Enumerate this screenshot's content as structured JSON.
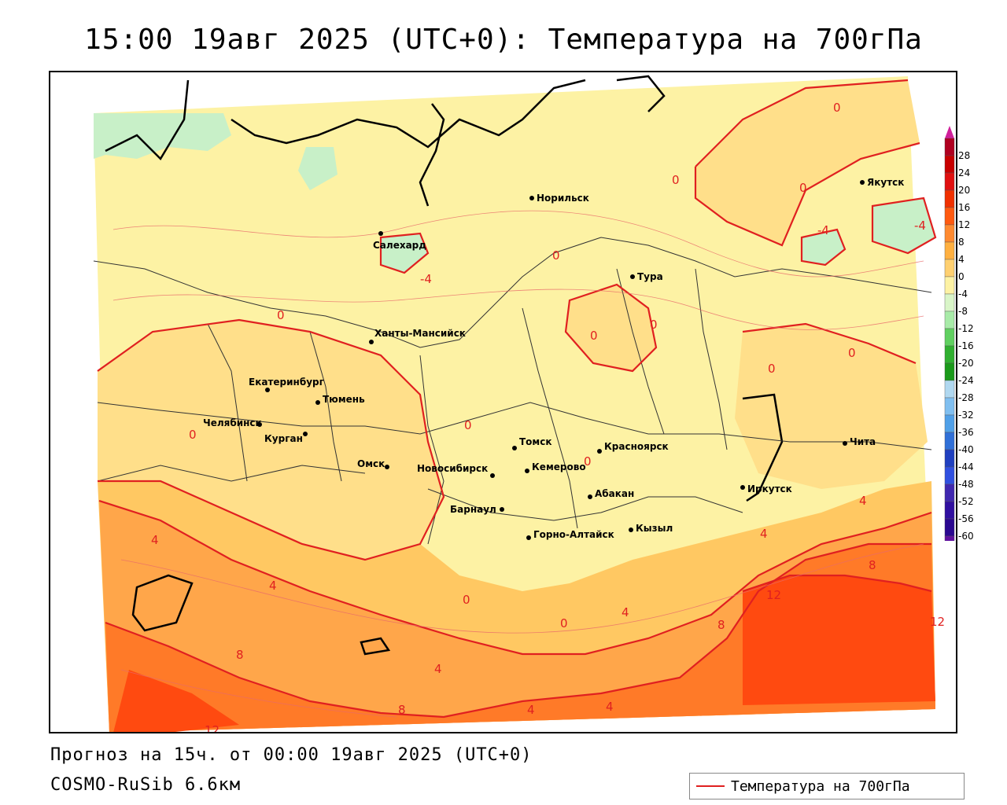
{
  "title": "15:00 19авг 2025 (UTC+0): Температура на 700гПа",
  "footer": {
    "forecast": "Прогноз на 15ч. от 00:00 19авг 2025 (UTC+0)",
    "model": "COSMO-RuSib 6.6км"
  },
  "line_legend": {
    "label": "Температура на 700гПа",
    "color": "#e02020"
  },
  "colorbar": {
    "ticks": [
      "28",
      "24",
      "20",
      "16",
      "12",
      "8",
      "4",
      "0",
      "-4",
      "-8",
      "-12",
      "-16",
      "-20",
      "-24",
      "-28",
      "-32",
      "-36",
      "-40",
      "-44",
      "-48",
      "-52",
      "-56",
      "-60"
    ],
    "colors": [
      "#b00020",
      "#c80000",
      "#e01010",
      "#f03000",
      "#ff5a10",
      "#ff8a30",
      "#ffb040",
      "#ffd070",
      "#fdf2a4",
      "#d9f5c8",
      "#a8eba8",
      "#60d060",
      "#30b030",
      "#1a9a1a",
      "#b0d8f0",
      "#80bff0",
      "#50a0e8",
      "#3070d8",
      "#2040c0",
      "#3050e0",
      "#4028b0",
      "#3010a0",
      "#2a0890",
      "#6010a0"
    ],
    "top_arrow_color": "#d0209a",
    "bottom_arrow_color": "#8a20c0"
  },
  "cities": [
    {
      "name": "Норильск"
    },
    {
      "name": "Якутск"
    },
    {
      "name": "Салехард"
    },
    {
      "name": "Тура"
    },
    {
      "name": "Ханты-Мансийск"
    },
    {
      "name": "Екатеринбург"
    },
    {
      "name": "Тюмень"
    },
    {
      "name": "Челябинск"
    },
    {
      "name": "Курган"
    },
    {
      "name": "Омск"
    },
    {
      "name": "Новосибирск"
    },
    {
      "name": "Томск"
    },
    {
      "name": "Кемерово"
    },
    {
      "name": "Красноярск"
    },
    {
      "name": "Абакан"
    },
    {
      "name": "Барнаул"
    },
    {
      "name": "Горно-Алтайск"
    },
    {
      "name": "Кызыл"
    },
    {
      "name": "Иркутск"
    },
    {
      "name": "Чита"
    }
  ],
  "isotherm_labels": [
    "0",
    "-4",
    "4",
    "8",
    "12"
  ]
}
